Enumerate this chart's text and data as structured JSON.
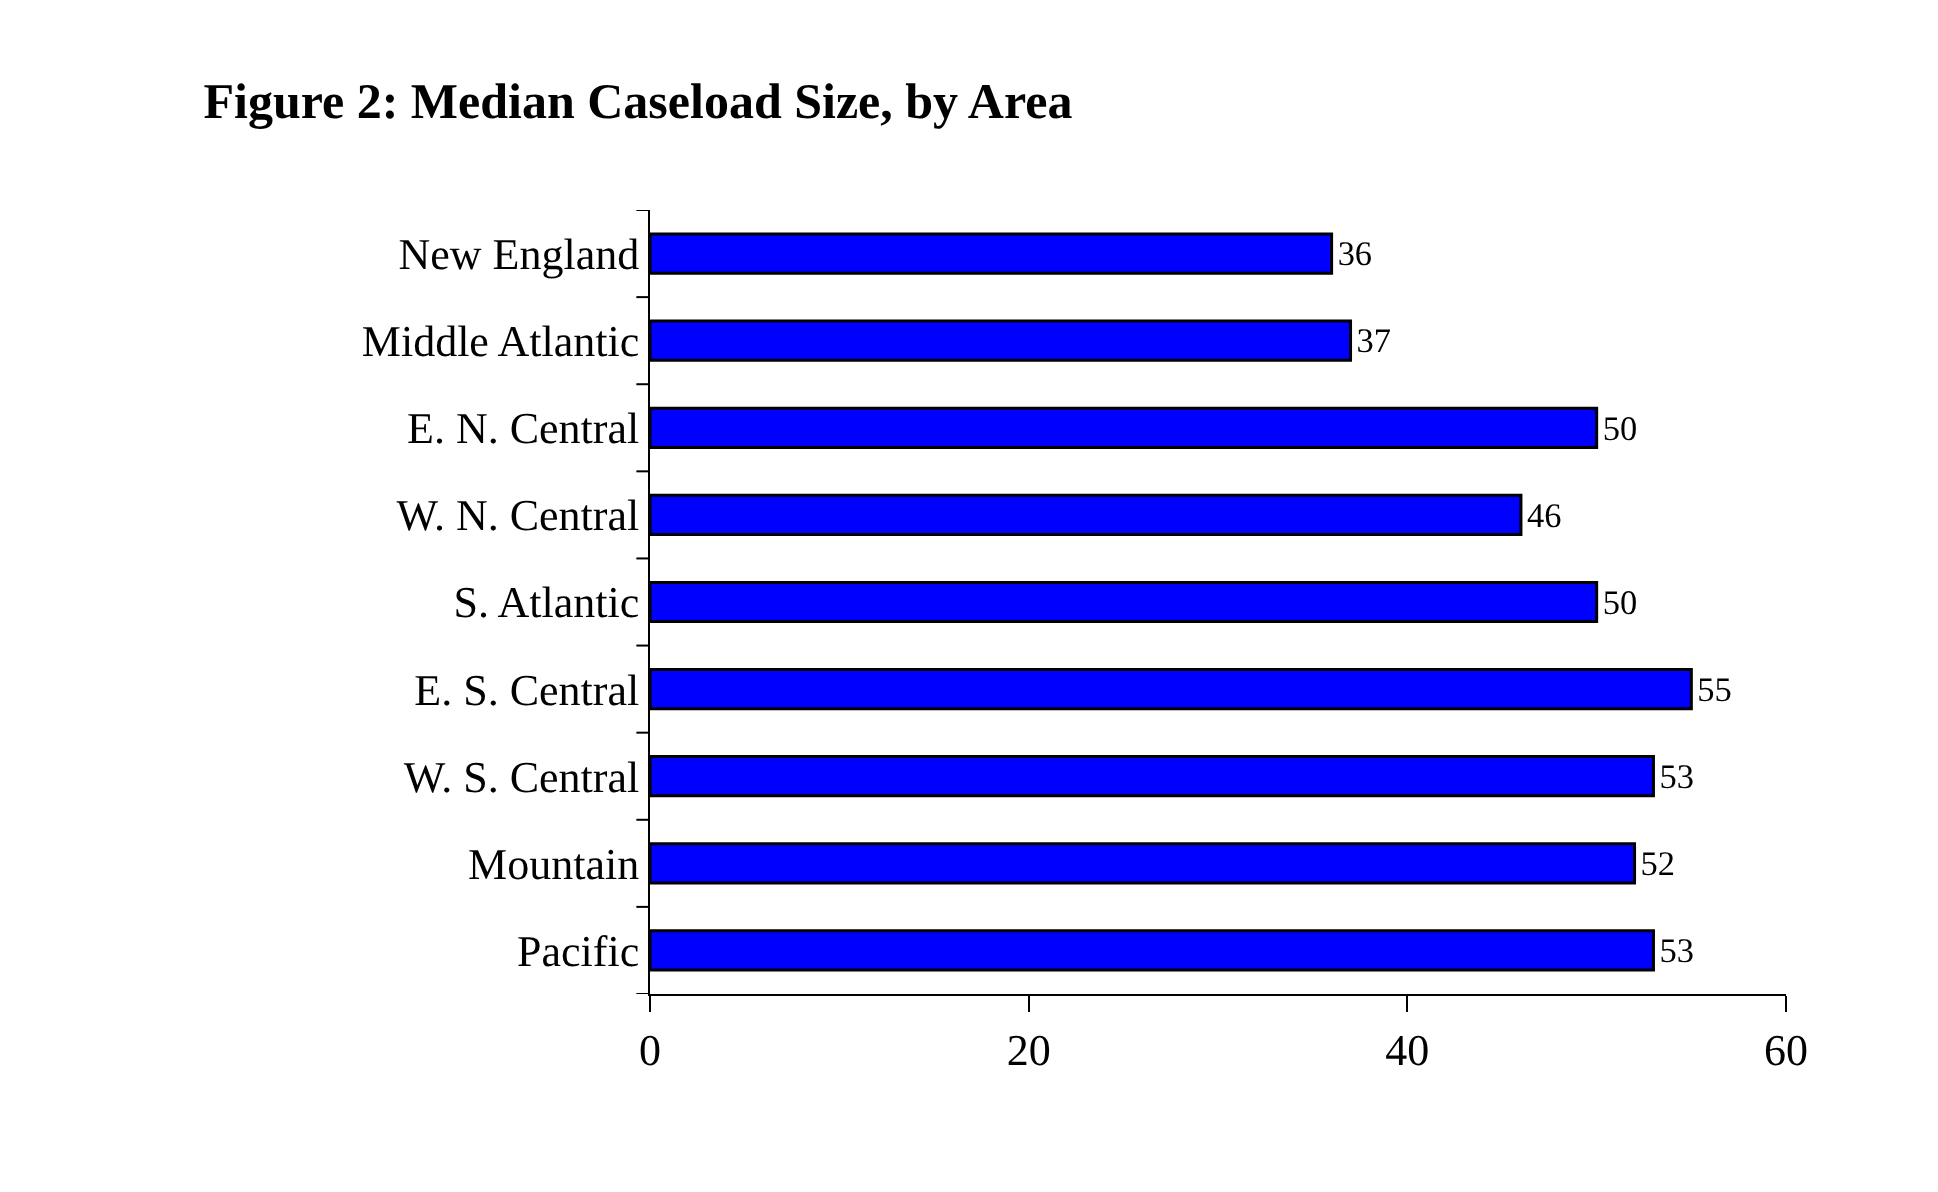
{
  "chart_data": {
    "type": "bar",
    "orientation": "horizontal",
    "title": "Figure 2: Median Caseload Size, by Area",
    "categories": [
      "New England",
      "Middle Atlantic",
      "E. N. Central",
      "W. N. Central",
      "S. Atlantic",
      "E. S. Central",
      "W. S. Central",
      "Mountain",
      "Pacific"
    ],
    "values": [
      36,
      37,
      50,
      46,
      50,
      55,
      53,
      52,
      53
    ],
    "color": "#0000ff",
    "xlim": [
      0,
      60
    ],
    "xticks": [
      0,
      20,
      40,
      60
    ],
    "data_labels": true
  }
}
